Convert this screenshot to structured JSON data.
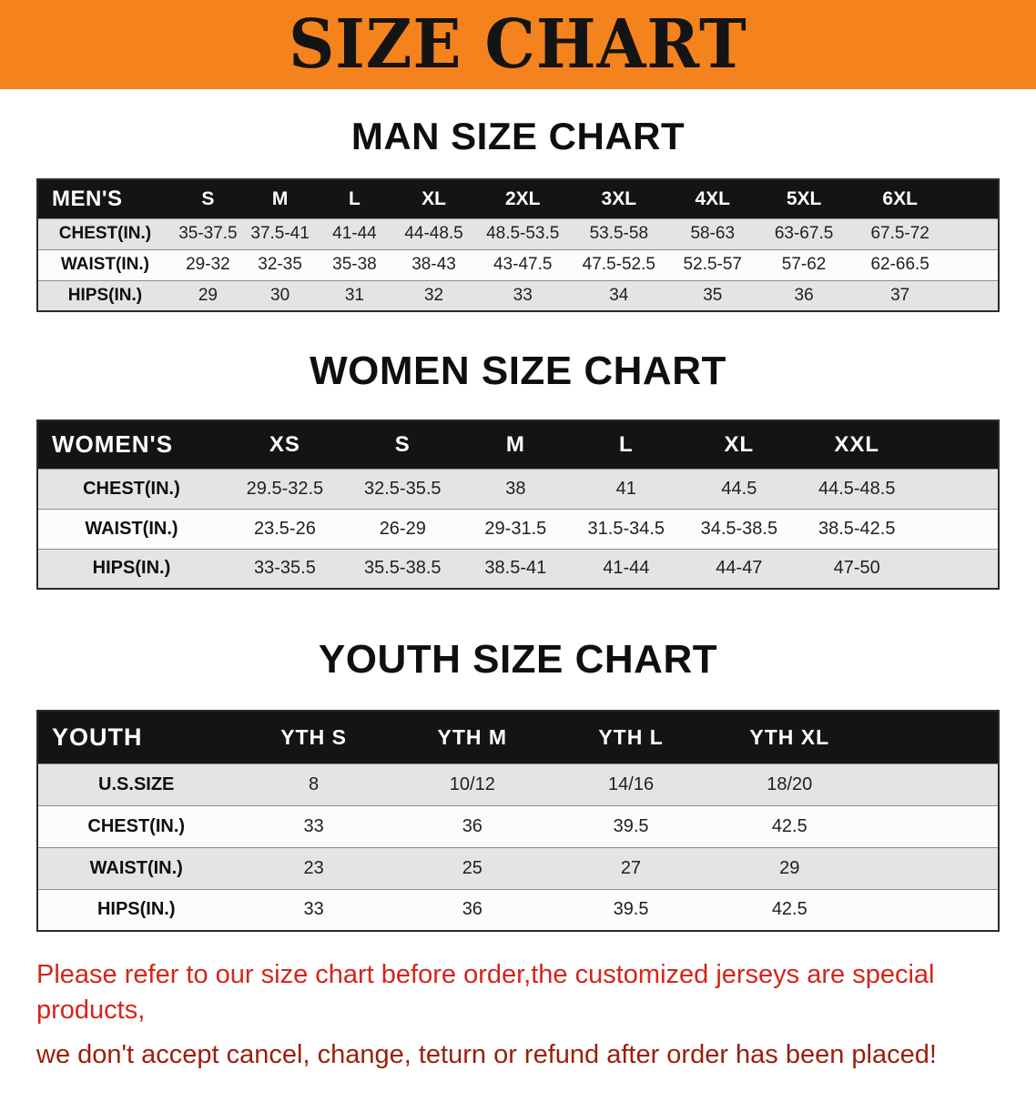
{
  "banner": {
    "title": "SIZE CHART",
    "bg_color": "#f5831d",
    "text_color": "#141414"
  },
  "sections": [
    {
      "id": "men",
      "heading": "MAN SIZE CHART",
      "table": {
        "header_label": "MEN'S",
        "columns": [
          "S",
          "M",
          "L",
          "XL",
          "2XL",
          "3XL",
          "4XL",
          "5XL",
          "6XL"
        ],
        "rows": [
          {
            "label": "CHEST(IN.)",
            "values": [
              "35-37.5",
              "37.5-41",
              "41-44",
              "44-48.5",
              "48.5-53.5",
              "53.5-58",
              "58-63",
              "63-67.5",
              "67.5-72"
            ]
          },
          {
            "label": "WAIST(IN.)",
            "values": [
              "29-32",
              "32-35",
              "35-38",
              "38-43",
              "43-47.5",
              "47.5-52.5",
              "52.5-57",
              "57-62",
              "62-66.5"
            ]
          },
          {
            "label": "HIPS(IN.)",
            "values": [
              "29",
              "30",
              "31",
              "32",
              "33",
              "34",
              "35",
              "36",
              "37"
            ]
          }
        ]
      }
    },
    {
      "id": "women",
      "heading": "WOMEN SIZE CHART",
      "table": {
        "header_label": "WOMEN'S",
        "columns": [
          "XS",
          "S",
          "M",
          "L",
          "XL",
          "XXL"
        ],
        "rows": [
          {
            "label": "CHEST(IN.)",
            "values": [
              "29.5-32.5",
              "32.5-35.5",
              "38",
              "41",
              "44.5",
              "44.5-48.5"
            ]
          },
          {
            "label": "WAIST(IN.)",
            "values": [
              "23.5-26",
              "26-29",
              "29-31.5",
              "31.5-34.5",
              "34.5-38.5",
              "38.5-42.5"
            ]
          },
          {
            "label": "HIPS(IN.)",
            "values": [
              "33-35.5",
              "35.5-38.5",
              "38.5-41",
              "41-44",
              "44-47",
              "47-50"
            ]
          }
        ]
      }
    },
    {
      "id": "youth",
      "heading": "YOUTH SIZE CHART",
      "table": {
        "header_label": "YOUTH",
        "columns": [
          "YTH S",
          "YTH M",
          "YTH L",
          "YTH XL"
        ],
        "rows": [
          {
            "label": "U.S.SIZE",
            "values": [
              "8",
              "10/12",
              "14/16",
              "18/20"
            ]
          },
          {
            "label": "CHEST(IN.)",
            "values": [
              "33",
              "36",
              "39.5",
              "42.5"
            ]
          },
          {
            "label": "WAIST(IN.)",
            "values": [
              "23",
              "25",
              "27",
              "29"
            ]
          },
          {
            "label": "HIPS(IN.)",
            "values": [
              "33",
              "36",
              "39.5",
              "42.5"
            ]
          }
        ]
      }
    }
  ],
  "footer": {
    "line1": "Please refer to our size chart before order,the customized jerseys are special products,",
    "line2": "we don't accept cancel, change, teturn or refund after order has been placed!",
    "line1_color": "#d2261b",
    "line2_color": "#9a1f0a"
  }
}
